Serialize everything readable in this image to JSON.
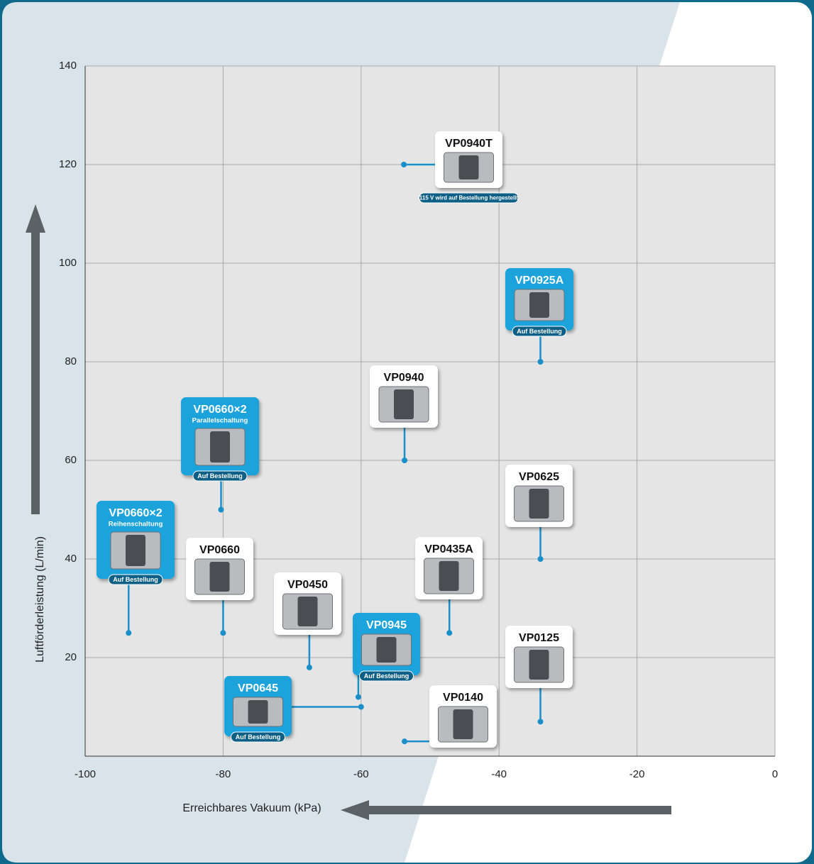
{
  "chart_data": {
    "type": "scatter",
    "xlabel": "Erreichbares Vakuum (kPa)",
    "ylabel": "Luftförderleistung (L/min)",
    "xlim": [
      -100,
      0
    ],
    "xticks": [
      -100,
      -80,
      -60,
      -40,
      -20,
      0
    ],
    "ylim": [
      0,
      140
    ],
    "yticks": [
      20,
      40,
      60,
      80,
      100,
      120,
      140
    ],
    "grid": true,
    "point_color": "#1a8fc8",
    "points": [
      {
        "label": "VP0940T",
        "x": -53.8,
        "y": 120,
        "color": "#ffffff",
        "badge": "115 V wird auf Bestellung hergestellt"
      },
      {
        "label": "VP0925A",
        "x": -34,
        "y": 80,
        "color": "#1aa3dc",
        "badge": "Auf Bestellung"
      },
      {
        "label": "VP0940",
        "x": -53.7,
        "y": 60,
        "color": "#ffffff"
      },
      {
        "label": "VP0660×2",
        "x": -80.3,
        "y": 50,
        "color": "#1aa3dc",
        "subtitle": "Parallelschaltung",
        "badge": "Auf Bestellung"
      },
      {
        "label": "VP0625",
        "x": -34,
        "y": 40,
        "color": "#ffffff"
      },
      {
        "label": "VP0660×2",
        "x": -93.7,
        "y": 25,
        "color": "#1aa3dc",
        "subtitle": "Reihenschaltung",
        "badge": "Auf Bestellung"
      },
      {
        "label": "VP0660",
        "x": -80,
        "y": 25,
        "color": "#ffffff"
      },
      {
        "label": "VP0450",
        "x": -67.5,
        "y": 18,
        "color": "#ffffff"
      },
      {
        "label": "VP0435A",
        "x": -47.2,
        "y": 25,
        "color": "#ffffff"
      },
      {
        "label": "VP0945",
        "x": -60.4,
        "y": 12,
        "color": "#1aa3dc",
        "badge": "Auf Bestellung"
      },
      {
        "label": "VP0645",
        "x": -60,
        "y": 10,
        "color": "#1aa3dc",
        "badge": "Auf Bestellung"
      },
      {
        "label": "VP0125",
        "x": -34,
        "y": 7,
        "color": "#ffffff"
      },
      {
        "label": "VP0140",
        "x": -53.7,
        "y": 3,
        "color": "#ffffff"
      }
    ]
  }
}
